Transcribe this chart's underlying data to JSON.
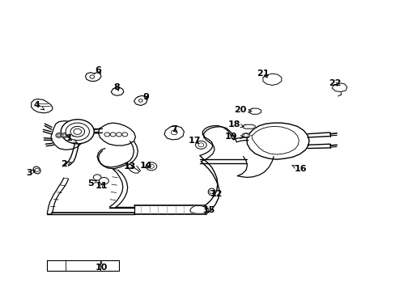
{
  "background_color": "#ffffff",
  "line_color": "#000000",
  "fig_width": 4.89,
  "fig_height": 3.6,
  "dpi": 100,
  "label_configs": {
    "1": {
      "lpos": [
        0.175,
        0.525
      ],
      "tpos": [
        0.2,
        0.505
      ]
    },
    "2": {
      "lpos": [
        0.16,
        0.435
      ],
      "tpos": [
        0.185,
        0.445
      ]
    },
    "3": {
      "lpos": [
        0.072,
        0.405
      ],
      "tpos": [
        0.09,
        0.415
      ]
    },
    "4": {
      "lpos": [
        0.092,
        0.64
      ],
      "tpos": [
        0.112,
        0.622
      ]
    },
    "5": {
      "lpos": [
        0.228,
        0.368
      ],
      "tpos": [
        0.245,
        0.38
      ]
    },
    "6": {
      "lpos": [
        0.248,
        0.76
      ],
      "tpos": [
        0.258,
        0.74
      ]
    },
    "7": {
      "lpos": [
        0.44,
        0.555
      ],
      "tpos": [
        0.452,
        0.538
      ]
    },
    "8": {
      "lpos": [
        0.295,
        0.7
      ],
      "tpos": [
        0.302,
        0.68
      ]
    },
    "9": {
      "lpos": [
        0.368,
        0.668
      ],
      "tpos": [
        0.372,
        0.648
      ]
    },
    "10": {
      "lpos": [
        0.255,
        0.078
      ],
      "tpos": [
        0.255,
        0.1
      ]
    },
    "11": {
      "lpos": [
        0.255,
        0.36
      ],
      "tpos": [
        0.265,
        0.375
      ]
    },
    "12": {
      "lpos": [
        0.548,
        0.332
      ],
      "tpos": [
        0.53,
        0.338
      ]
    },
    "13": {
      "lpos": [
        0.328,
        0.428
      ],
      "tpos": [
        0.342,
        0.415
      ]
    },
    "14": {
      "lpos": [
        0.368,
        0.43
      ],
      "tpos": [
        0.38,
        0.415
      ]
    },
    "15": {
      "lpos": [
        0.528,
        0.278
      ],
      "tpos": [
        0.51,
        0.285
      ]
    },
    "16": {
      "lpos": [
        0.76,
        0.418
      ],
      "tpos": [
        0.738,
        0.432
      ]
    },
    "17": {
      "lpos": [
        0.492,
        0.518
      ],
      "tpos": [
        0.508,
        0.5
      ]
    },
    "18": {
      "lpos": [
        0.592,
        0.572
      ],
      "tpos": [
        0.618,
        0.565
      ]
    },
    "19": {
      "lpos": [
        0.585,
        0.532
      ],
      "tpos": [
        0.618,
        0.528
      ]
    },
    "20": {
      "lpos": [
        0.608,
        0.622
      ],
      "tpos": [
        0.638,
        0.618
      ]
    },
    "21": {
      "lpos": [
        0.665,
        0.748
      ],
      "tpos": [
        0.682,
        0.728
      ]
    },
    "22": {
      "lpos": [
        0.848,
        0.715
      ],
      "tpos": [
        0.858,
        0.698
      ]
    }
  }
}
